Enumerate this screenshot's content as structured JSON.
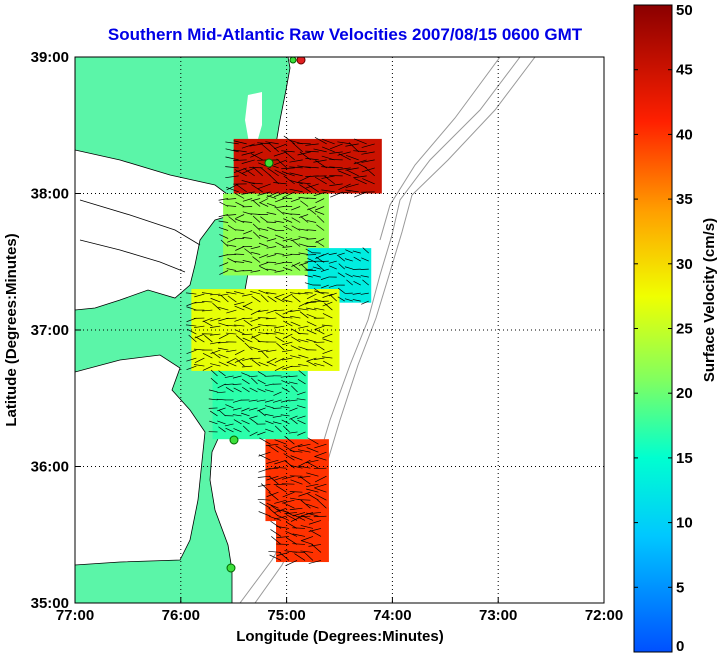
{
  "chart_data": {
    "type": "heatmap",
    "title": "Southern Mid-Atlantic Raw Velocities 2007/08/15 0600 GMT",
    "xlabel": "Longitude (Degrees:Minutes)",
    "ylabel": "Latitude (Degrees:Minutes)",
    "x_tick_labels": [
      "77:00",
      "76:00",
      "75:00",
      "74:00",
      "73:00",
      "72:00"
    ],
    "y_tick_labels": [
      "39:00",
      "38:00",
      "37:00",
      "36:00",
      "35:00"
    ],
    "xlim": [
      -77,
      -72
    ],
    "ylim": [
      35,
      39
    ],
    "grid": true,
    "colorbar": {
      "label": "Surface Velocity (cm/s)",
      "range": [
        0,
        50
      ],
      "tick_labels": [
        "0",
        "5",
        "10",
        "15",
        "20",
        "25",
        "30",
        "35",
        "40",
        "45",
        "50"
      ]
    },
    "colors": {
      "land": "#5bf5a8",
      "title": "#0000e6"
    },
    "regions": [
      {
        "lon": [
          -75.5,
          -74.1
        ],
        "lat": [
          38.0,
          38.4
        ],
        "speed": 45
      },
      {
        "lon": [
          -75.6,
          -74.6
        ],
        "lat": [
          37.4,
          38.0
        ],
        "speed": 22
      },
      {
        "lon": [
          -74.8,
          -74.2
        ],
        "lat": [
          37.2,
          37.6
        ],
        "speed": 13
      },
      {
        "lon": [
          -75.9,
          -74.5
        ],
        "lat": [
          36.7,
          37.3
        ],
        "speed": 27
      },
      {
        "lon": [
          -75.7,
          -74.8
        ],
        "lat": [
          36.2,
          36.7
        ],
        "speed": 17
      },
      {
        "lon": [
          -75.2,
          -74.6
        ],
        "lat": [
          35.6,
          36.2
        ],
        "speed": 40
      },
      {
        "lon": [
          -75.1,
          -74.6
        ],
        "lat": [
          35.3,
          35.7
        ],
        "speed": 40
      }
    ]
  }
}
